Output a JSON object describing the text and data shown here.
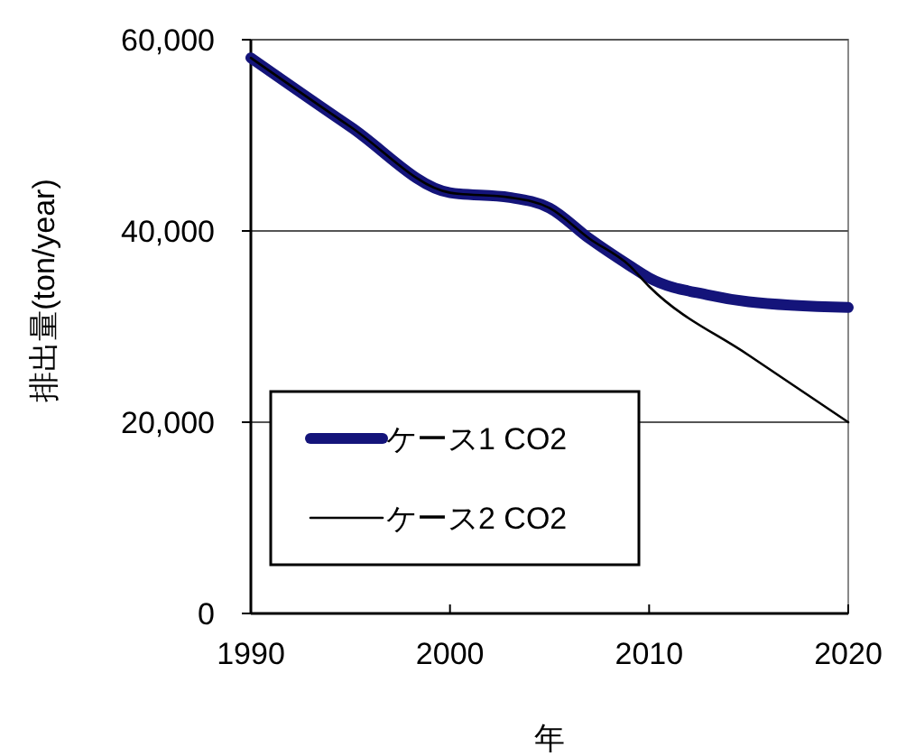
{
  "chart_data": {
    "type": "line",
    "xlabel": "年",
    "ylabel": "排出量(ton/year)",
    "xlim": [
      1990,
      2020
    ],
    "xticks": [
      1990,
      2000,
      2010,
      2020
    ],
    "ylim": [
      0,
      60000
    ],
    "yticks": [
      {
        "value": 0,
        "label": "0"
      },
      {
        "value": 20000,
        "label": "20,000"
      },
      {
        "value": 40000,
        "label": "40,000"
      },
      {
        "value": 60000,
        "label": "60,000"
      }
    ],
    "grid": "y",
    "legend": "bottom left",
    "marker": "none",
    "line_style": "solid",
    "series": [
      {
        "name": "ケース1 CO2",
        "color": "#14147a",
        "x": [
          1990,
          1995,
          2000,
          2003,
          2005,
          2007,
          2009,
          2010,
          2013,
          2015,
          2020
        ],
        "values": [
          58100,
          50900,
          44000,
          43500,
          42400,
          39200,
          36400,
          35100,
          33300,
          32600,
          32000
        ]
      },
      {
        "name": "ケース2 CO2",
        "color": "#000000",
        "x": [
          1990,
          1995,
          2000,
          2003,
          2005,
          2007,
          2009,
          2010,
          2015,
          2020
        ],
        "values": [
          58100,
          50900,
          44000,
          43500,
          42400,
          39200,
          36400,
          34200,
          27000,
          20000
        ]
      }
    ]
  }
}
